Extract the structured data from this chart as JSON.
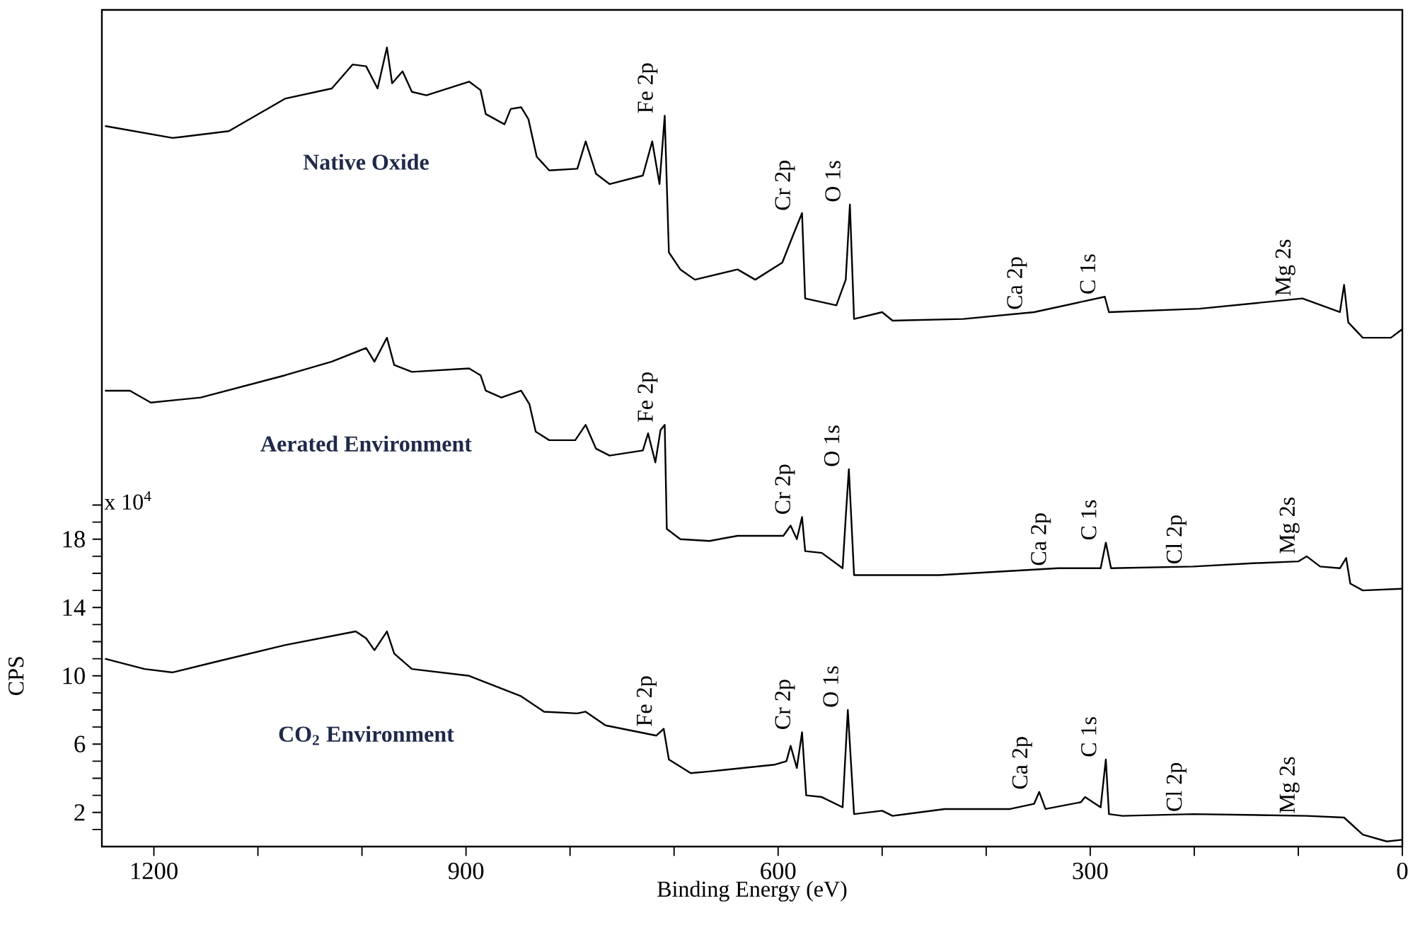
{
  "chart_data": {
    "type": "line",
    "xlabel": "Binding Energy (eV)",
    "ylabel": "CPS",
    "xlim": [
      1250,
      0
    ],
    "ylim": [
      0,
      49
    ],
    "xticks": [
      1200,
      {
        "value": 1100,
        "label": null
      },
      {
        "value": 1000,
        "label": null
      },
      900,
      {
        "value": 800,
        "label": null
      },
      {
        "value": 700,
        "label": null
      },
      600,
      {
        "value": 500,
        "label": null
      },
      {
        "value": 400,
        "label": null
      },
      300,
      {
        "value": 200,
        "label": null
      },
      {
        "value": 100,
        "label": null
      },
      0
    ],
    "yticks": [
      {
        "value": 1,
        "label": null
      },
      2,
      {
        "value": 3,
        "label": null
      },
      {
        "value": 4,
        "label": null
      },
      {
        "value": 5,
        "label": null
      },
      6,
      {
        "value": 7,
        "label": null
      },
      {
        "value": 8,
        "label": null
      },
      {
        "value": 9,
        "label": null
      },
      10,
      {
        "value": 11,
        "label": null
      },
      {
        "value": 12,
        "label": null
      },
      {
        "value": 13,
        "label": null
      },
      14,
      {
        "value": 15,
        "label": null
      },
      {
        "value": 16,
        "label": null
      },
      {
        "value": 17,
        "label": null
      },
      18,
      {
        "value": 19,
        "label": null
      },
      {
        "value": 20,
        "label": null
      }
    ],
    "series": [
      {
        "name": "Native Oxide",
        "color": "#000000",
        "x": [
          1247,
          1182,
          1128,
          1074,
          1029,
          1009,
          996,
          985,
          976,
          971,
          961,
          952,
          938,
          897,
          886,
          881,
          863,
          857,
          847,
          840,
          832,
          820,
          793,
          785,
          775,
          762,
          730,
          721,
          714,
          709,
          705,
          694,
          680,
          639,
          622,
          596,
          585,
          577,
          574,
          544,
          535,
          531,
          527,
          500,
          490,
          422,
          354,
          286,
          282,
          195,
          96,
          60,
          56,
          52,
          38,
          11,
          0
        ],
        "values": [
          42.2,
          41.5,
          41.9,
          43.8,
          44.4,
          45.8,
          45.7,
          44.4,
          46.8,
          44.7,
          45.4,
          44.2,
          44.0,
          44.8,
          44.3,
          42.9,
          42.3,
          43.2,
          43.3,
          42.6,
          40.4,
          39.6,
          39.7,
          41.3,
          39.4,
          38.8,
          39.3,
          41.3,
          38.8,
          42.8,
          34.8,
          33.8,
          33.2,
          33.8,
          33.2,
          34.2,
          35.9,
          37.1,
          32.1,
          31.7,
          33.2,
          37.6,
          30.9,
          31.3,
          30.8,
          30.9,
          31.3,
          32.2,
          31.3,
          31.5,
          32.1,
          31.3,
          32.9,
          30.7,
          29.8,
          29.8,
          30.3
        ]
      },
      {
        "name": "Aerated Environment",
        "color": "#000000",
        "x": [
          1247,
          1223,
          1203,
          1155,
          1074,
          1029,
          996,
          988,
          976,
          969,
          952,
          897,
          886,
          881,
          866,
          847,
          839,
          833,
          820,
          795,
          785,
          775,
          762,
          730,
          725,
          718,
          713,
          709,
          707,
          694,
          666,
          639,
          595,
          588,
          582,
          577,
          574,
          558,
          538,
          535,
          532,
          527,
          445,
          331,
          290,
          285,
          280,
          201,
          141,
          100,
          92,
          79,
          60,
          54,
          50,
          38,
          0
        ],
        "values": [
          26.7,
          26.7,
          26.0,
          26.3,
          27.6,
          28.4,
          29.2,
          28.4,
          29.8,
          28.2,
          27.8,
          28.0,
          27.6,
          26.7,
          26.3,
          26.7,
          25.9,
          24.3,
          23.8,
          23.8,
          24.7,
          23.3,
          22.9,
          23.2,
          24.2,
          22.5,
          24.4,
          24.7,
          18.6,
          18.0,
          17.9,
          18.2,
          18.2,
          18.8,
          18.0,
          19.3,
          17.3,
          17.2,
          16.3,
          19.3,
          22.1,
          15.9,
          15.9,
          16.3,
          16.3,
          17.8,
          16.3,
          16.4,
          16.6,
          16.7,
          17.0,
          16.4,
          16.3,
          16.9,
          15.4,
          15.0,
          15.1
        ]
      },
      {
        "name": "CO$_{2}$ Environment",
        "color": "#000000",
        "x": [
          1247,
          1209,
          1182,
          1142,
          1074,
          1006,
          996,
          988,
          976,
          969,
          952,
          897,
          847,
          825,
          793,
          785,
          766,
          717,
          710,
          705,
          684,
          666,
          603,
          592,
          588,
          582,
          577,
          573,
          558,
          538,
          533,
          527,
          500,
          490,
          440,
          377,
          354,
          349,
          343,
          309,
          305,
          290,
          285,
          282,
          269,
          201,
          92,
          56,
          38,
          15,
          0
        ],
        "values": [
          11.0,
          10.4,
          10.2,
          10.8,
          11.8,
          12.6,
          12.2,
          11.5,
          12.6,
          11.3,
          10.4,
          10.0,
          8.8,
          7.9,
          7.8,
          7.9,
          7.1,
          6.5,
          6.9,
          5.1,
          4.3,
          4.4,
          4.8,
          5.0,
          5.9,
          4.6,
          6.7,
          3.0,
          2.9,
          2.3,
          8.0,
          1.9,
          2.1,
          1.8,
          2.2,
          2.2,
          2.5,
          3.2,
          2.2,
          2.6,
          2.9,
          2.3,
          5.1,
          1.9,
          1.8,
          1.9,
          1.8,
          1.7,
          0.7,
          0.3,
          0.4
        ]
      }
    ],
    "annotations": [
      "x 10$^{4}$",
      {
        "text": "Fe 2p",
        "x": 709,
        "y": 42.8
      },
      {
        "text": "Cr 2p",
        "x": 577,
        "y": 37.1
      },
      {
        "text": "O 1s",
        "x": 531,
        "y": 37.6
      },
      {
        "text": "Ca 2p",
        "x": 354,
        "y": 31.3
      },
      {
        "text": "C 1s",
        "x": 286,
        "y": 32.2
      },
      {
        "text": "Mg 2s",
        "x": 96,
        "y": 32.1
      },
      {
        "text": "Fe 2p",
        "x": 709,
        "y": 24.7
      },
      {
        "text": "Cr 2p",
        "x": 577,
        "y": 19.3
      },
      {
        "text": "O 1s",
        "x": 532,
        "y": 22.1
      },
      {
        "text": "Ca 2p",
        "x": 331,
        "y": 16.3
      },
      {
        "text": "C 1s",
        "x": 285,
        "y": 17.8
      },
      {
        "text": "Cl 2p",
        "x": 201,
        "y": 16.4
      },
      {
        "text": "Mg 2s",
        "x": 92,
        "y": 17.0
      },
      {
        "text": "Fe 2p",
        "x": 710,
        "y": 6.9
      },
      {
        "text": "Cr 2p",
        "x": 577,
        "y": 6.7
      },
      {
        "text": "O 1s",
        "x": 533,
        "y": 8.0
      },
      {
        "text": "Ca 2p",
        "x": 349,
        "y": 3.2
      },
      {
        "text": "C 1s",
        "x": 285,
        "y": 5.1
      },
      {
        "text": "Cl 2p",
        "x": 201,
        "y": 1.9
      },
      {
        "text": "Mg 2s",
        "x": 92,
        "y": 1.8
      }
    ]
  }
}
